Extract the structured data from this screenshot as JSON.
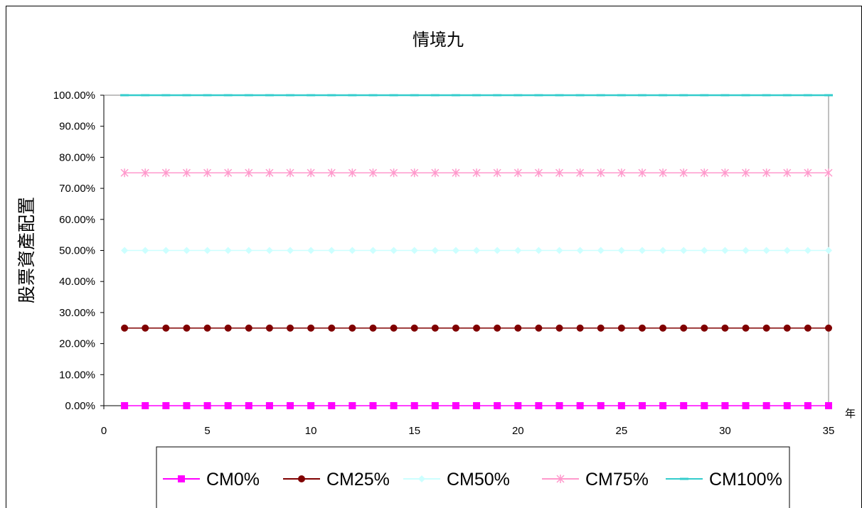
{
  "chart_data": {
    "type": "line",
    "title": "情境九",
    "ylabel": "股票資產配置",
    "xlabel": "年",
    "x": [
      1,
      2,
      3,
      4,
      5,
      6,
      7,
      8,
      9,
      10,
      11,
      12,
      13,
      14,
      15,
      16,
      17,
      18,
      19,
      20,
      21,
      22,
      23,
      24,
      25,
      26,
      27,
      28,
      29,
      30,
      31,
      32,
      33,
      34,
      35
    ],
    "xlim": [
      0,
      35
    ],
    "ylim": [
      0,
      1
    ],
    "x_ticks": [
      "0",
      "5",
      "10",
      "15",
      "20",
      "25",
      "30",
      "35"
    ],
    "y_ticks": [
      "0.00%",
      "10.00%",
      "20.00%",
      "30.00%",
      "40.00%",
      "50.00%",
      "60.00%",
      "70.00%",
      "80.00%",
      "90.00%",
      "100.00%"
    ],
    "grid": false,
    "legend_position": "bottom",
    "series": [
      {
        "name": "CM0%",
        "value": 0.0,
        "color": "#ff00ff",
        "marker": "square"
      },
      {
        "name": "CM25%",
        "value": 0.25,
        "color": "#800000",
        "marker": "circle"
      },
      {
        "name": "CM50%",
        "value": 0.5,
        "color": "#ccffff",
        "marker": "diamond"
      },
      {
        "name": "CM75%",
        "value": 0.75,
        "color": "#ff99cc",
        "marker": "asterisk"
      },
      {
        "name": "CM100%",
        "value": 1.0,
        "color": "#33cccc",
        "marker": "dash"
      }
    ]
  }
}
